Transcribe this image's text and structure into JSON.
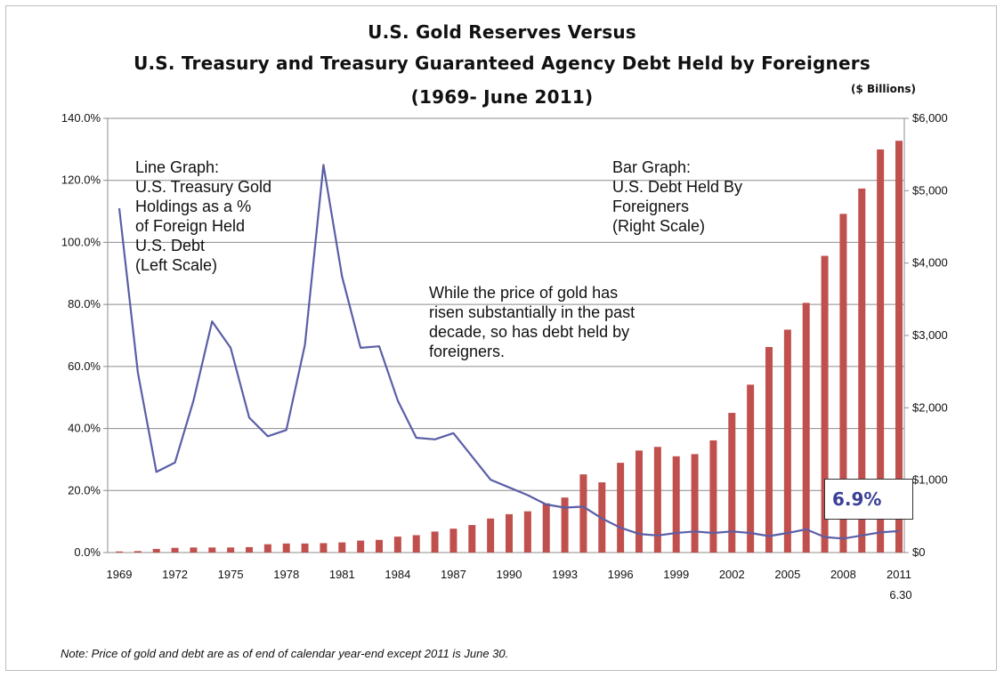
{
  "chart_data": {
    "type": "bar",
    "title_lines": [
      "U.S. Gold Reserves Versus",
      "U.S. Treasury and Treasury Guaranteed Agency Debt Held by Foreigners",
      "(1969- June 2011)"
    ],
    "units_label": "($ Billions)",
    "x_tick_labels": [
      "1969",
      "1972",
      "1975",
      "1978",
      "1981",
      "1984",
      "1987",
      "1990",
      "1993",
      "1996",
      "1999",
      "2002",
      "2005",
      "2008",
      "2011"
    ],
    "x_tick_sublabel": "6.30",
    "left_axis": {
      "ylim": [
        0,
        140
      ],
      "ticks": [
        "0.0%",
        "20.0%",
        "40.0%",
        "60.0%",
        "80.0%",
        "100.0%",
        "120.0%",
        "140.0%"
      ]
    },
    "right_axis": {
      "ylim": [
        0,
        6000
      ],
      "ticks": [
        "$0",
        "$1,000",
        "$2,000",
        "$3,000",
        "$4,000",
        "$5,000",
        "$6,000"
      ]
    },
    "grid": true,
    "x": [
      1969,
      1970,
      1971,
      1972,
      1973,
      1974,
      1975,
      1976,
      1977,
      1978,
      1979,
      1980,
      1981,
      1982,
      1983,
      1984,
      1985,
      1986,
      1987,
      1988,
      1989,
      1990,
      1991,
      1992,
      1993,
      1994,
      1995,
      1996,
      1997,
      1998,
      1999,
      2000,
      2001,
      2002,
      2003,
      2004,
      2005,
      2006,
      2007,
      2008,
      2009,
      2010,
      2011
    ],
    "series": [
      {
        "name": "U.S. Debt Held By Foreigners",
        "kind": "bar",
        "axis": "right",
        "color": "#c0504d",
        "values": [
          15,
          20,
          50,
          65,
          70,
          70,
          70,
          75,
          115,
          125,
          125,
          130,
          140,
          165,
          175,
          220,
          240,
          290,
          330,
          380,
          470,
          530,
          570,
          680,
          760,
          1080,
          970,
          1240,
          1410,
          1460,
          1330,
          1360,
          1550,
          1930,
          2320,
          2840,
          3080,
          3450,
          4100,
          4680,
          5030,
          5570,
          5690
        ]
      },
      {
        "name": "U.S. Treasury Gold Holdings as a % of Foreign Held U.S. Debt",
        "kind": "line",
        "axis": "left",
        "color": "#5b5ea6",
        "values": [
          111,
          58,
          26,
          29,
          49,
          74.5,
          66,
          43.5,
          37.5,
          39.5,
          67,
          125,
          89,
          66,
          66.5,
          49,
          37,
          36.5,
          38.5,
          31,
          23.5,
          21,
          18.5,
          15.5,
          14.5,
          14.8,
          11,
          8,
          6,
          5.5,
          6.3,
          6.8,
          6.3,
          6.8,
          6.3,
          5.3,
          6.3,
          7.5,
          5,
          4.5,
          5.5,
          6.5,
          6.9
        ]
      }
    ],
    "annotations": {
      "line_graph": [
        "Line Graph:",
        "U.S. Treasury Gold",
        "Holdings as a %",
        "of Foreign Held",
        "U.S. Debt",
        "(Left Scale)"
      ],
      "bar_graph": [
        "Bar Graph:",
        "U.S. Debt Held By",
        "Foreigners",
        "(Right Scale)"
      ],
      "middle": [
        "While the price of gold has",
        "risen substantially in the past",
        "decade, so has debt held by",
        "foreigners."
      ],
      "callout": "6.9%"
    },
    "note": "Note: Price of gold and debt are as of end of calendar year-end except 2011 is June 30."
  }
}
